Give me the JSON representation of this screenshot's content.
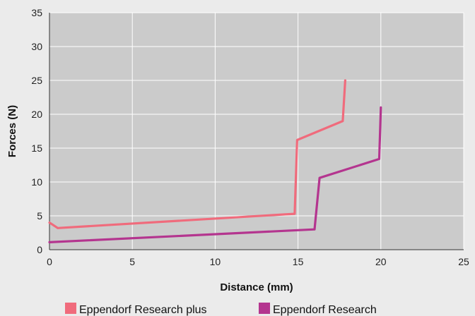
{
  "chart_data": {
    "type": "line",
    "title": "",
    "xlabel": "Distance (mm)",
    "ylabel": "Forces (N)",
    "xlim": [
      0,
      25
    ],
    "ylim": [
      0,
      35
    ],
    "xticks": [
      0,
      5,
      10,
      15,
      20,
      25
    ],
    "yticks": [
      0,
      5,
      10,
      15,
      20,
      25,
      30,
      35
    ],
    "grid": true,
    "legend_position": "bottom",
    "series": [
      {
        "name": "Eppendorf Research plus",
        "color": "#f06b7c",
        "x": [
          0,
          0.5,
          14.8,
          14.95,
          17.7,
          17.85
        ],
        "y": [
          4.0,
          3.2,
          5.3,
          16.2,
          19.0,
          25.0
        ]
      },
      {
        "name": "Eppendorf Research",
        "color": "#b4358f",
        "x": [
          0,
          16.0,
          16.3,
          19.9,
          20.0
        ],
        "y": [
          1.1,
          3.0,
          10.6,
          13.4,
          21.0
        ]
      }
    ]
  }
}
